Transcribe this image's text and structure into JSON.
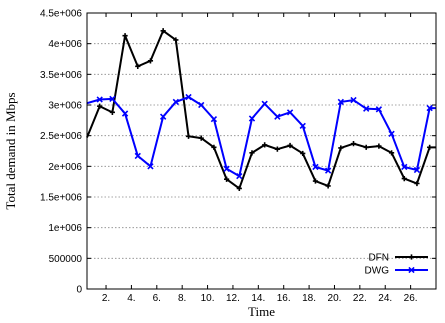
{
  "chart_data": {
    "type": "line",
    "xlabel": "Time",
    "ylabel": "Total demand in Mbps",
    "xlim": [
      0.5,
      28
    ],
    "ylim": [
      0,
      4500000
    ],
    "grid": true,
    "legend_position": "bottom-right",
    "yticks": [
      {
        "value": 0,
        "label": "0"
      },
      {
        "value": 500000,
        "label": "500000"
      },
      {
        "value": 1000000,
        "label": "1e+006"
      },
      {
        "value": 1500000,
        "label": "1.5e+006"
      },
      {
        "value": 2000000,
        "label": "2e+006"
      },
      {
        "value": 2500000,
        "label": "2.5e+006"
      },
      {
        "value": 3000000,
        "label": "3e+006"
      },
      {
        "value": 3500000,
        "label": "3.5e+006"
      },
      {
        "value": 4000000,
        "label": "4e+006"
      },
      {
        "value": 4500000,
        "label": "4.5e+006"
      }
    ],
    "xticks": [
      {
        "value": 2,
        "label": "2."
      },
      {
        "value": 4,
        "label": "4."
      },
      {
        "value": 6,
        "label": "6."
      },
      {
        "value": 8,
        "label": "8."
      },
      {
        "value": 10,
        "label": "10."
      },
      {
        "value": 12,
        "label": "12."
      },
      {
        "value": 14,
        "label": "14."
      },
      {
        "value": 16,
        "label": "16."
      },
      {
        "value": 18,
        "label": "18."
      },
      {
        "value": 20,
        "label": "20."
      },
      {
        "value": 22,
        "label": "22."
      },
      {
        "value": 24,
        "label": "24."
      },
      {
        "value": 26,
        "label": "26."
      }
    ],
    "x": [
      0.5,
      1.5,
      2.5,
      3.5,
      4.5,
      5.5,
      6.5,
      7.5,
      8.5,
      9.5,
      10.5,
      11.5,
      12.5,
      13.5,
      14.5,
      15.5,
      16.5,
      17.5,
      18.5,
      19.5,
      20.5,
      21.5,
      22.5,
      23.5,
      24.5,
      25.5,
      26.5,
      27.5,
      28
    ],
    "series": [
      {
        "name": "DFN",
        "color": "#000000",
        "marker": "plus",
        "values": [
          2470000,
          2980000,
          2880000,
          4130000,
          3630000,
          3720000,
          4210000,
          4060000,
          2490000,
          2460000,
          2310000,
          1790000,
          1640000,
          2220000,
          2350000,
          2280000,
          2340000,
          2210000,
          1760000,
          1680000,
          2300000,
          2370000,
          2310000,
          2330000,
          2220000,
          1800000,
          1720000,
          2310000,
          2310000
        ]
      },
      {
        "name": "DWG",
        "color": "#0000ff",
        "marker": "x",
        "values": [
          3030000,
          3090000,
          3100000,
          2860000,
          2170000,
          2000000,
          2810000,
          3050000,
          3130000,
          3000000,
          2770000,
          1960000,
          1840000,
          2780000,
          3020000,
          2810000,
          2880000,
          2660000,
          1990000,
          1930000,
          3050000,
          3080000,
          2940000,
          2930000,
          2530000,
          1990000,
          1940000,
          2950000,
          2950000
        ]
      }
    ]
  }
}
